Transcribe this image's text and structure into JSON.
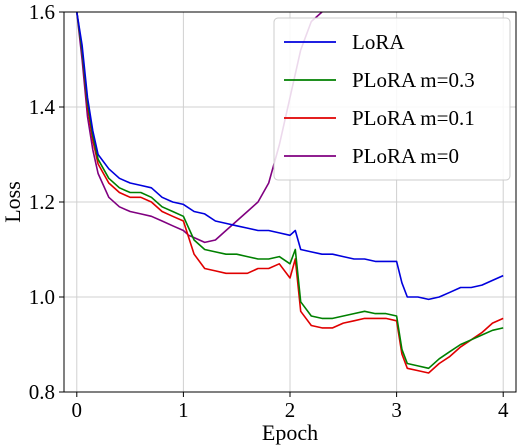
{
  "chart_data": {
    "type": "line",
    "xlabel": "Epoch",
    "ylabel": "Loss",
    "xlim": [
      -0.12,
      4.12
    ],
    "ylim": [
      0.8,
      1.6
    ],
    "x_ticks": [
      0,
      1,
      2,
      3,
      4
    ],
    "x_tick_labels": [
      "0",
      "1",
      "2",
      "3",
      "4"
    ],
    "y_ticks": [
      0.8,
      1.0,
      1.2,
      1.4,
      1.6
    ],
    "y_tick_labels": [
      "0.8",
      "1.0",
      "1.2",
      "1.4",
      "1.6"
    ],
    "grid": true,
    "legend_position": "top-right",
    "series": [
      {
        "name": "LoRA",
        "color": "#0000dd",
        "x": [
          0.0,
          0.05,
          0.1,
          0.15,
          0.2,
          0.3,
          0.4,
          0.5,
          0.6,
          0.7,
          0.8,
          0.9,
          1.0,
          1.1,
          1.2,
          1.3,
          1.4,
          1.5,
          1.6,
          1.7,
          1.8,
          1.9,
          2.0,
          2.05,
          2.1,
          2.2,
          2.3,
          2.4,
          2.5,
          2.6,
          2.7,
          2.8,
          2.9,
          3.0,
          3.05,
          3.1,
          3.2,
          3.3,
          3.4,
          3.5,
          3.6,
          3.7,
          3.8,
          3.9,
          4.0
        ],
        "values": [
          1.6,
          1.53,
          1.42,
          1.35,
          1.3,
          1.27,
          1.25,
          1.24,
          1.235,
          1.23,
          1.21,
          1.2,
          1.195,
          1.18,
          1.175,
          1.16,
          1.155,
          1.15,
          1.145,
          1.14,
          1.14,
          1.135,
          1.13,
          1.14,
          1.1,
          1.095,
          1.09,
          1.09,
          1.085,
          1.08,
          1.08,
          1.075,
          1.075,
          1.075,
          1.03,
          1.0,
          1.0,
          0.995,
          1.0,
          1.01,
          1.02,
          1.02,
          1.025,
          1.035,
          1.045
        ]
      },
      {
        "name": "PLoRA m=0.3",
        "color": "#008000",
        "x": [
          0.0,
          0.05,
          0.1,
          0.15,
          0.2,
          0.3,
          0.4,
          0.5,
          0.6,
          0.7,
          0.8,
          0.9,
          1.0,
          1.1,
          1.2,
          1.3,
          1.4,
          1.5,
          1.6,
          1.7,
          1.8,
          1.9,
          2.0,
          2.05,
          2.1,
          2.2,
          2.3,
          2.4,
          2.5,
          2.6,
          2.7,
          2.8,
          2.9,
          3.0,
          3.05,
          3.1,
          3.2,
          3.3,
          3.4,
          3.5,
          3.6,
          3.7,
          3.8,
          3.9,
          4.0
        ],
        "values": [
          1.6,
          1.52,
          1.41,
          1.34,
          1.29,
          1.25,
          1.23,
          1.22,
          1.22,
          1.21,
          1.19,
          1.18,
          1.17,
          1.12,
          1.1,
          1.095,
          1.09,
          1.09,
          1.085,
          1.08,
          1.08,
          1.085,
          1.07,
          1.1,
          0.99,
          0.96,
          0.955,
          0.955,
          0.96,
          0.965,
          0.97,
          0.965,
          0.965,
          0.96,
          0.89,
          0.86,
          0.855,
          0.85,
          0.87,
          0.885,
          0.9,
          0.91,
          0.92,
          0.93,
          0.935
        ]
      },
      {
        "name": "PLoRA m=0.1",
        "color": "#e00000",
        "x": [
          0.0,
          0.05,
          0.1,
          0.15,
          0.2,
          0.3,
          0.4,
          0.5,
          0.6,
          0.7,
          0.8,
          0.9,
          1.0,
          1.1,
          1.2,
          1.3,
          1.4,
          1.5,
          1.6,
          1.7,
          1.8,
          1.9,
          2.0,
          2.05,
          2.1,
          2.2,
          2.3,
          2.4,
          2.5,
          2.6,
          2.7,
          2.8,
          2.9,
          3.0,
          3.05,
          3.1,
          3.2,
          3.3,
          3.4,
          3.5,
          3.6,
          3.7,
          3.8,
          3.9,
          4.0
        ],
        "values": [
          1.6,
          1.52,
          1.4,
          1.33,
          1.28,
          1.24,
          1.22,
          1.21,
          1.21,
          1.2,
          1.18,
          1.17,
          1.16,
          1.09,
          1.06,
          1.055,
          1.05,
          1.05,
          1.05,
          1.06,
          1.06,
          1.07,
          1.04,
          1.08,
          0.97,
          0.94,
          0.935,
          0.935,
          0.945,
          0.95,
          0.955,
          0.955,
          0.955,
          0.95,
          0.88,
          0.85,
          0.845,
          0.84,
          0.86,
          0.875,
          0.895,
          0.91,
          0.925,
          0.945,
          0.955
        ]
      },
      {
        "name": "PLoRA m=0",
        "color": "#800080",
        "x": [
          0.0,
          0.05,
          0.1,
          0.15,
          0.2,
          0.3,
          0.4,
          0.5,
          0.6,
          0.7,
          0.8,
          0.9,
          1.0,
          1.05,
          1.1,
          1.15,
          1.2,
          1.3,
          1.4,
          1.5,
          1.6,
          1.7,
          1.8,
          1.9,
          2.0,
          2.1,
          2.2,
          2.3
        ],
        "values": [
          1.6,
          1.5,
          1.38,
          1.31,
          1.26,
          1.21,
          1.19,
          1.18,
          1.175,
          1.17,
          1.16,
          1.15,
          1.14,
          1.13,
          1.125,
          1.12,
          1.115,
          1.12,
          1.14,
          1.16,
          1.18,
          1.2,
          1.24,
          1.32,
          1.42,
          1.52,
          1.58,
          1.6
        ]
      }
    ]
  }
}
